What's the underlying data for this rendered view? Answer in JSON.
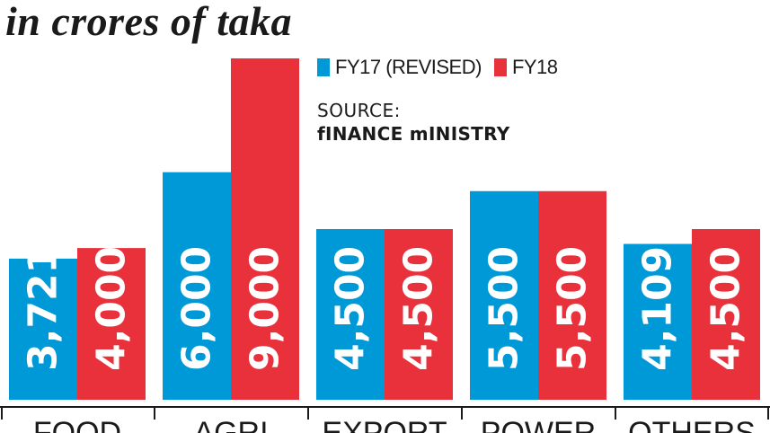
{
  "header": {
    "unit_title": "in crores of taka"
  },
  "legend": {
    "items": [
      {
        "label": "FY17 (REVISED)",
        "color": "#0099d8"
      },
      {
        "label": "FY18",
        "color": "#e8313a"
      }
    ]
  },
  "source": {
    "label": "SOURCE:",
    "value": "fINANCE mINISTRY"
  },
  "chart_data": {
    "type": "bar",
    "title": "",
    "xlabel": "",
    "ylabel": "",
    "categories": [
      "FOOD",
      "AGRI",
      "EXPORT",
      "POWER",
      "OTHERS"
    ],
    "series": [
      {
        "name": "FY17 (REVISED)",
        "values": [
          3721,
          6000,
          4500,
          5500,
          4109
        ],
        "color": "#0099d8"
      },
      {
        "name": "FY18",
        "values": [
          4000,
          9000,
          4500,
          5500,
          4500
        ],
        "color": "#e8313a"
      }
    ],
    "data_labels": [
      [
        "3,721",
        "6,000",
        "4,500",
        "5,500",
        "4,109"
      ],
      [
        "4,000",
        "9,000",
        "4,500",
        "5,500",
        "4,500"
      ]
    ],
    "ylim": [
      0,
      9000
    ],
    "grid": false,
    "legend_position": "top-right"
  }
}
